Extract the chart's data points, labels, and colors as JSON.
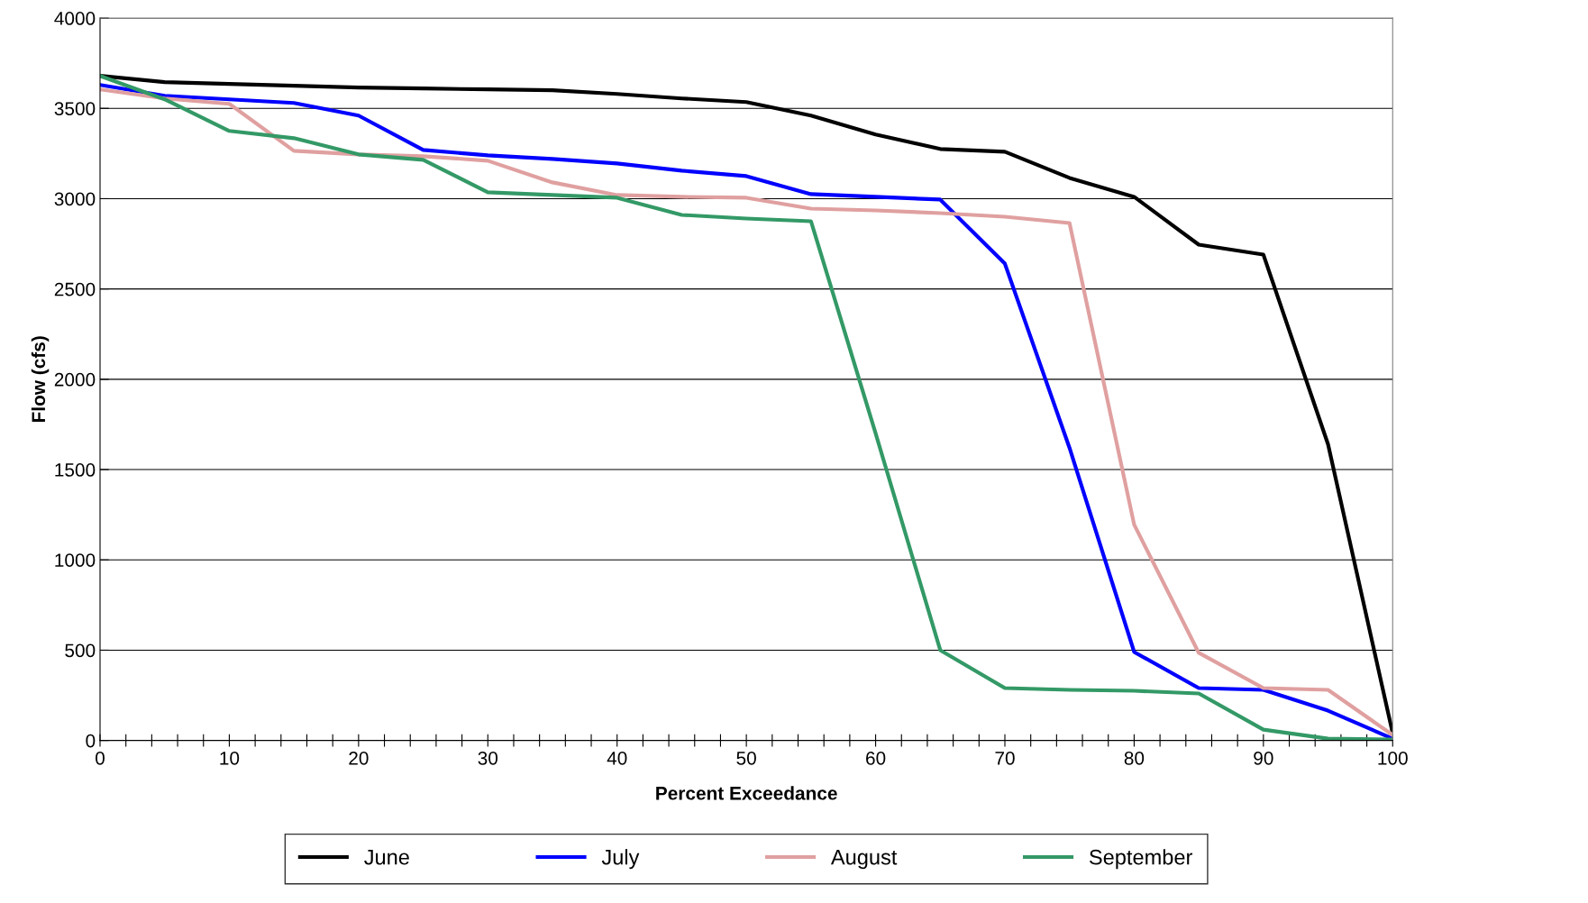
{
  "chart_data": {
    "type": "line",
    "xlabel": "Percent Exceedance",
    "ylabel": "Flow (cfs)",
    "x": [
      0,
      5,
      10,
      15,
      20,
      25,
      30,
      35,
      40,
      45,
      50,
      55,
      60,
      65,
      70,
      75,
      80,
      85,
      90,
      95,
      100
    ],
    "series": [
      {
        "name": "June",
        "color": "#000000",
        "values": [
          3680,
          3645,
          3635,
          3625,
          3615,
          3610,
          3605,
          3600,
          3580,
          3555,
          3535,
          3460,
          3355,
          3275,
          3260,
          3115,
          3010,
          2745,
          2690,
          1640,
          40
        ]
      },
      {
        "name": "July",
        "color": "#0000ff",
        "values": [
          3630,
          3570,
          3550,
          3530,
          3460,
          3270,
          3240,
          3220,
          3195,
          3155,
          3125,
          3025,
          3010,
          2995,
          2640,
          1620,
          490,
          290,
          280,
          165,
          10
        ]
      },
      {
        "name": "August",
        "color": "#e0a0a0",
        "values": [
          3605,
          3555,
          3525,
          3265,
          3245,
          3235,
          3210,
          3090,
          3020,
          3010,
          3005,
          2945,
          2935,
          2920,
          2900,
          2865,
          1195,
          485,
          290,
          280,
          30
        ]
      },
      {
        "name": "September",
        "color": "#339966",
        "values": [
          3680,
          3550,
          3375,
          3335,
          3245,
          3215,
          3035,
          3020,
          3005,
          2910,
          2890,
          2875,
          1700,
          500,
          290,
          280,
          275,
          260,
          60,
          10,
          5
        ]
      }
    ],
    "xlim": [
      0,
      100
    ],
    "xticks": [
      0,
      {
        "value": 2,
        "label": null
      },
      {
        "value": 4,
        "label": null
      },
      {
        "value": 6,
        "label": null
      },
      {
        "value": 8,
        "label": null
      },
      10,
      {
        "value": 12,
        "label": null
      },
      {
        "value": 14,
        "label": null
      },
      {
        "value": 16,
        "label": null
      },
      {
        "value": 18,
        "label": null
      },
      20,
      {
        "value": 22,
        "label": null
      },
      {
        "value": 24,
        "label": null
      },
      {
        "value": 26,
        "label": null
      },
      {
        "value": 28,
        "label": null
      },
      30,
      {
        "value": 32,
        "label": null
      },
      {
        "value": 34,
        "label": null
      },
      {
        "value": 36,
        "label": null
      },
      {
        "value": 38,
        "label": null
      },
      40,
      {
        "value": 42,
        "label": null
      },
      {
        "value": 44,
        "label": null
      },
      {
        "value": 46,
        "label": null
      },
      {
        "value": 48,
        "label": null
      },
      50,
      {
        "value": 52,
        "label": null
      },
      {
        "value": 54,
        "label": null
      },
      {
        "value": 56,
        "label": null
      },
      {
        "value": 58,
        "label": null
      },
      60,
      {
        "value": 62,
        "label": null
      },
      {
        "value": 64,
        "label": null
      },
      {
        "value": 66,
        "label": null
      },
      {
        "value": 68,
        "label": null
      },
      70,
      {
        "value": 72,
        "label": null
      },
      {
        "value": 74,
        "label": null
      },
      {
        "value": 76,
        "label": null
      },
      {
        "value": 78,
        "label": null
      },
      80,
      {
        "value": 82,
        "label": null
      },
      {
        "value": 84,
        "label": null
      },
      {
        "value": 86,
        "label": null
      },
      {
        "value": 88,
        "label": null
      },
      90,
      {
        "value": 92,
        "label": null
      },
      {
        "value": 94,
        "label": null
      },
      {
        "value": 96,
        "label": null
      },
      {
        "value": 98,
        "label": null
      },
      100
    ],
    "ylim": [
      0,
      4000
    ],
    "yticks": [
      0,
      500,
      1000,
      1500,
      2000,
      2500,
      3000,
      3500,
      4000
    ],
    "grid": "y",
    "legend": "bottom",
    "marker": "none",
    "line_style": "solid"
  }
}
